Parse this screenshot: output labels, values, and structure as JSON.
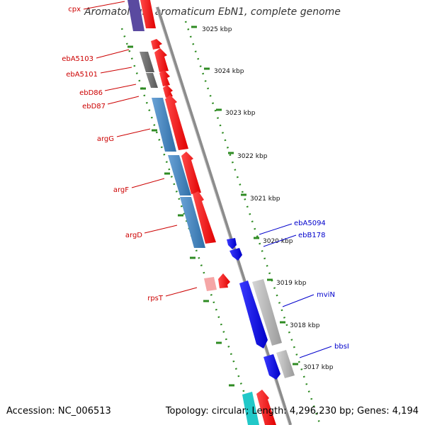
{
  "title": "Aromatoleum aromaticum EbN1, complete genome",
  "footer": {
    "accession_label": "Accession:",
    "accession": "NC_006513",
    "topology_label": "Topology:",
    "topology": "circular",
    "length_label": "Length:",
    "length": "4,296,230 bp",
    "genes_label": "Genes:",
    "genes": "4,194"
  },
  "colors": {
    "backbone": "#8c8c8c",
    "tick": "#2e8b22",
    "gene_red": "#ff1a1a",
    "gene_light_red": "#f5a6a6",
    "gene_blue": "#1a1aff",
    "gene_steelblue": "#4a86c0",
    "gene_gray": "#6e6e6e",
    "gene_lightgray": "#b8b8b8",
    "gene_purple": "#5a4aa0",
    "gene_cyan": "#22c8c8",
    "label_red": "#cc0000",
    "label_blue": "#0000cc"
  },
  "scale_ticks": [
    "3025 kbp",
    "3024 kbp",
    "3023 kbp",
    "3022 kbp",
    "3021 kbp",
    "3020 kbp",
    "3019 kbp",
    "3018 kbp",
    "3017 kbp"
  ],
  "gene_labels_left": [
    "cpx",
    "ebA5103",
    "ebA5101",
    "ebD86",
    "ebD87",
    "argG",
    "argF",
    "argD",
    "rpsT"
  ],
  "gene_labels_right": [
    "ebA5094",
    "ebB178",
    "mviN",
    "bbsI"
  ]
}
